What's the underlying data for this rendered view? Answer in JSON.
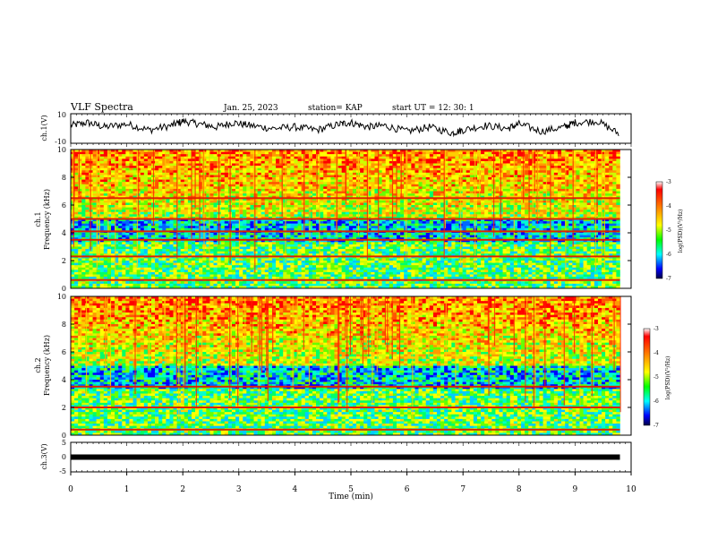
{
  "header": {
    "title": "VLF Spectra",
    "date": "Jan. 25, 2023",
    "station": "station= KAP",
    "start": "start  UT  =   12: 30: 1"
  },
  "chart_data": [
    {
      "type": "line",
      "panel": "ch1-waveform",
      "ylabel": "ch.1(V)",
      "ylim": [
        -10,
        10
      ],
      "ytick_labels": [
        "10",
        "-10"
      ],
      "xlim": [
        0,
        10
      ],
      "color": "#000000",
      "x": [
        0,
        0.3,
        0.6,
        1.0,
        1.4,
        1.8,
        2.0,
        2.3,
        2.6,
        2.9,
        3.2,
        3.6,
        4.0,
        4.4,
        4.8,
        5.0,
        5.3,
        5.6,
        6.0,
        6.4,
        6.8,
        7.0,
        7.4,
        7.8,
        8.0,
        8.4,
        8.8,
        9.0,
        9.4,
        9.8
      ],
      "values": [
        2,
        4,
        1,
        3,
        -1,
        2,
        5,
        3,
        1,
        4,
        2,
        0,
        1,
        -1,
        3,
        4,
        1,
        2,
        -2,
        1,
        -3,
        -1,
        2,
        0,
        3,
        -2,
        1,
        4,
        5,
        -4
      ]
    },
    {
      "type": "heatmap",
      "panel": "ch1-spectrogram",
      "ylabel": "ch.1\nFrequency (kHz)",
      "ylabel_lines": [
        "ch.1",
        "Frequency (kHz)"
      ],
      "ylim": [
        0,
        10
      ],
      "ytick_labels": [
        "0",
        "2",
        "4",
        "6",
        "8",
        "10"
      ],
      "xlim": [
        0,
        10
      ],
      "data_extent_min": 9.8,
      "bands_khz": [
        6.5,
        5.0,
        4.1,
        3.5,
        2.3,
        0.6
      ],
      "colorbar": {
        "label": "log(PSD)(V²/Hz)",
        "range": [
          -7,
          -3
        ],
        "tick_labels": [
          "-3",
          "-4",
          "-5",
          "-6",
          "-7"
        ],
        "colors": [
          "#ff0000",
          "#ff9900",
          "#ffff00",
          "#00ff00",
          "#00ffff",
          "#0000ff",
          "#000044"
        ]
      }
    },
    {
      "type": "heatmap",
      "panel": "ch2-spectrogram",
      "ylabel": "ch.2\nFrequency (kHz)",
      "ylabel_lines": [
        "ch.2",
        "Frequency (kHz)"
      ],
      "ylim": [
        0,
        10
      ],
      "ytick_labels": [
        "0",
        "2",
        "4",
        "6",
        "8",
        "10"
      ],
      "xlim": [
        0,
        10
      ],
      "data_extent_min": 9.8,
      "bands_khz": [
        3.5,
        2.0,
        0.4
      ],
      "colorbar": {
        "label": "log(PSD)(V²/Hz)",
        "range": [
          -7,
          -3
        ],
        "tick_labels": [
          "-3",
          "-4",
          "-5",
          "-6",
          "-7"
        ],
        "colors": [
          "#ff0000",
          "#ff9900",
          "#ffff00",
          "#00ff00",
          "#00ffff",
          "#0000ff",
          "#000044"
        ]
      }
    },
    {
      "type": "line",
      "panel": "ch3-waveform",
      "ylabel": "ch.3(V)",
      "ylim": [
        -5,
        5
      ],
      "ytick_labels": [
        "5",
        "0",
        "-5"
      ],
      "xlim": [
        0,
        10
      ],
      "xlabel": "Time  (min)",
      "xtick_labels": [
        "0",
        "1",
        "2",
        "3",
        "4",
        "5",
        "6",
        "7",
        "8",
        "9",
        "10"
      ],
      "x": [
        0,
        9.8
      ],
      "values": [
        0,
        0
      ],
      "color": "#000000"
    }
  ]
}
